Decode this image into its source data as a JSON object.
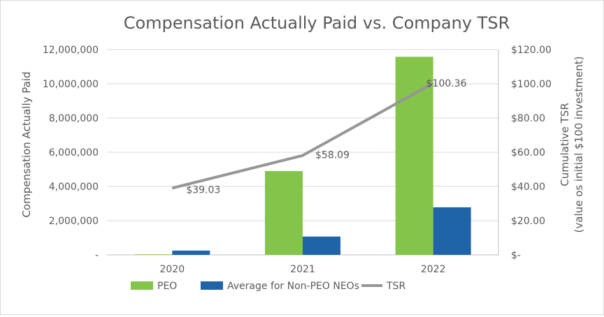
{
  "chart_data": {
    "type": "bar",
    "title": "Compensation Actually Paid vs. Company TSR",
    "categories": [
      "2020",
      "2021",
      "2022"
    ],
    "series": [
      {
        "name": "PEO",
        "type": "bar",
        "axis": "left",
        "color": "#84c44a",
        "values": [
          30000,
          4900000,
          11580000
        ]
      },
      {
        "name": "Average for Non-PEO NEOs",
        "type": "bar",
        "axis": "left",
        "color": "#1f64a8",
        "values": [
          250000,
          1070000,
          2780000
        ]
      },
      {
        "name": "TSR",
        "type": "line",
        "axis": "right",
        "color": "#969696",
        "values": [
          39.03,
          58.09,
          100.36
        ]
      }
    ],
    "data_labels": [
      "$39.03",
      "$58.09",
      "$100.36"
    ],
    "ylabel": "Compensation Actually Paid",
    "y2label_line1": "Cumulative TSR",
    "y2label_line2": "(value os initial $100 investment)",
    "ylim": [
      0,
      12000000
    ],
    "y2lim": [
      0,
      120
    ],
    "yticks": [
      "-",
      "2,000,000",
      "4,000,000",
      "6,000,000",
      "8,000,000",
      "10,000,000",
      "12,000,000"
    ],
    "y2ticks": [
      "$-",
      "$20.00",
      "$40.00",
      "$60.00",
      "$80.00",
      "$100.00",
      "$120.00"
    ],
    "grid": true,
    "legend_position": "bottom"
  }
}
